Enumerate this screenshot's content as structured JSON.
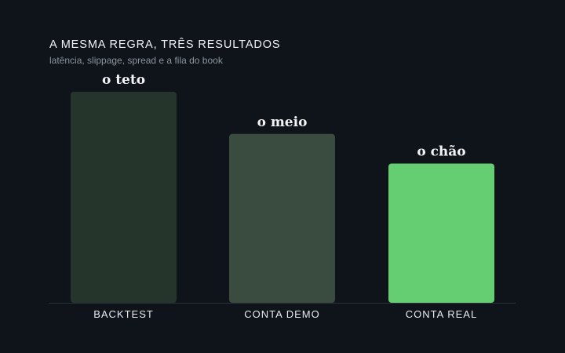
{
  "chart_data": {
    "type": "bar",
    "title": "A MESMA REGRA, TRÊS RESULTADOS",
    "subtitle": "latência, slippage, spread e a fila do book",
    "categories": [
      "BACKTEST",
      "CONTA DEMO",
      "CONTA REAL"
    ],
    "values": [
      100,
      80,
      66
    ],
    "value_labels": [
      "o teto",
      "o meio",
      "o chão"
    ],
    "ylim": [
      0,
      100
    ],
    "grid": false,
    "bar_colors": [
      "#26352b",
      "#3a4b3f",
      "#65cd72"
    ],
    "baseline_color": "#2a313a",
    "background": "#0f141b"
  }
}
